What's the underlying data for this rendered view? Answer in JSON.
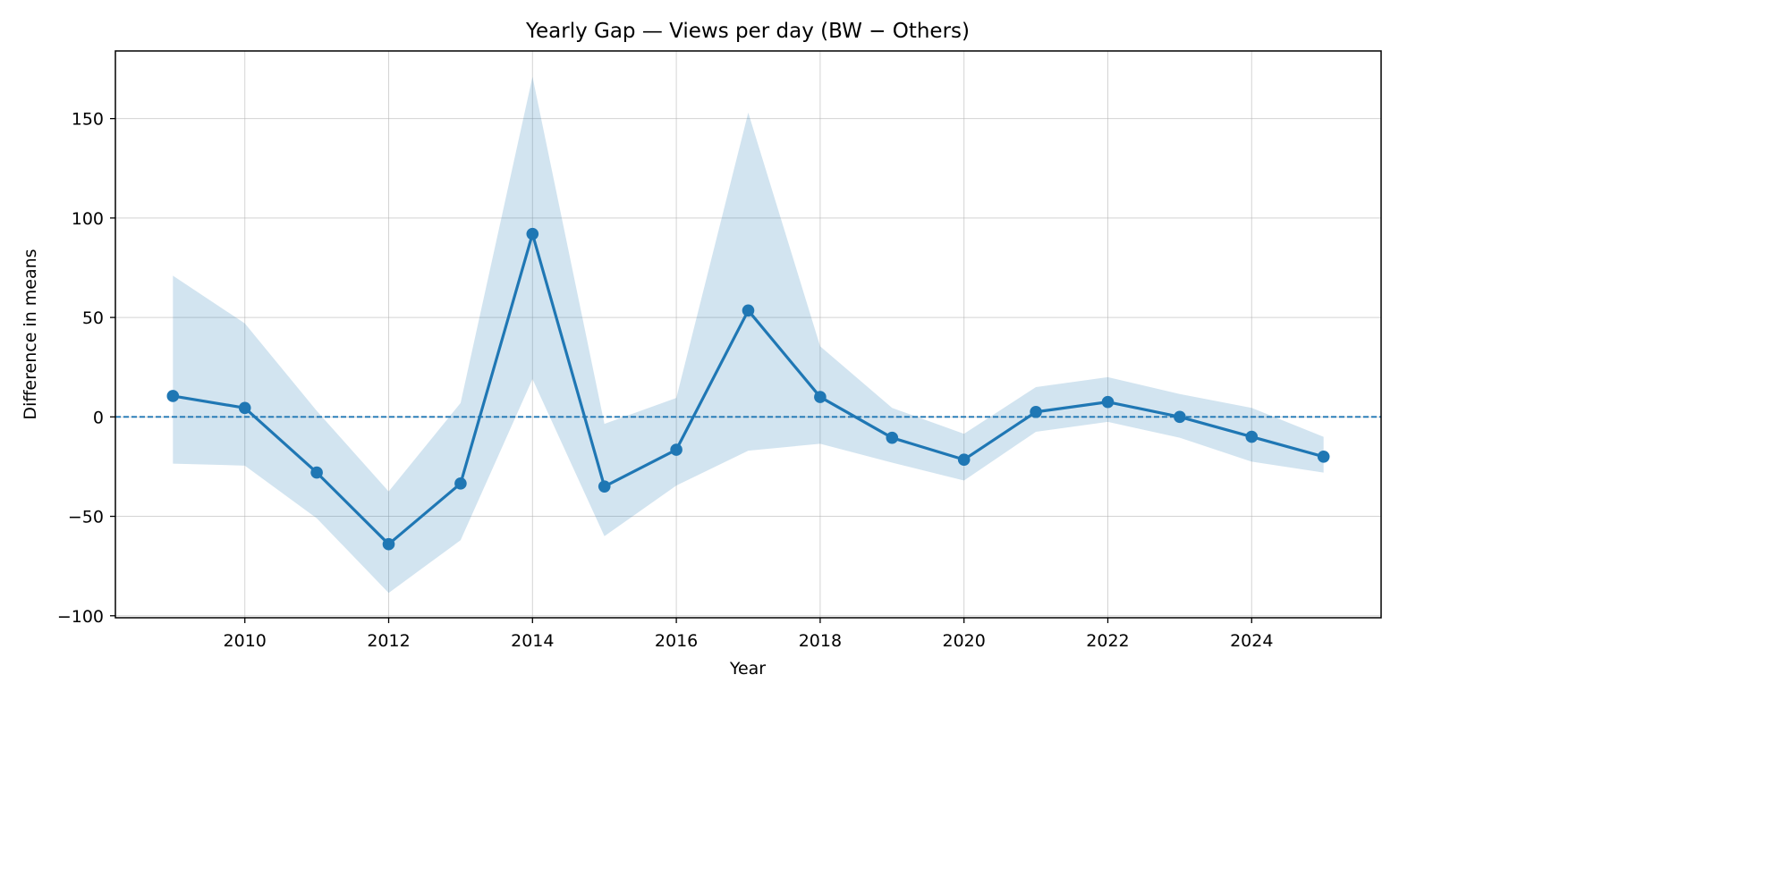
{
  "chart_data": {
    "type": "line",
    "title": "Yearly Gap — Views per day (BW − Others)",
    "xlabel": "Year",
    "ylabel": "Difference in means",
    "xlim": [
      2008.2,
      2025.8
    ],
    "ylim": [
      -101,
      184
    ],
    "xticks": [
      2010,
      2012,
      2014,
      2016,
      2018,
      2020,
      2022,
      2024
    ],
    "xtick_labels": [
      "2010",
      "2012",
      "2014",
      "2016",
      "2018",
      "2020",
      "2022",
      "2024"
    ],
    "yticks": [
      -100,
      -50,
      0,
      50,
      100,
      150
    ],
    "ytick_labels": [
      "−100",
      "−50",
      "0",
      "50",
      "100",
      "150"
    ],
    "grid": true,
    "reference_line": {
      "y": 0,
      "style": "dashed"
    },
    "series": [
      {
        "x": [
          2009,
          2010,
          2011,
          2012,
          2013,
          2014,
          2015,
          2016,
          2017,
          2018,
          2019,
          2020,
          2021,
          2022,
          2023,
          2024,
          2025
        ],
        "values": [
          10.5,
          4.5,
          -28,
          -64,
          -33.5,
          92,
          -35,
          -16.5,
          53.5,
          10,
          -10.5,
          -21.5,
          2.5,
          7.5,
          0,
          -10,
          -20
        ],
        "ci_low": [
          -23.5,
          -24.5,
          -51,
          -88.5,
          -62,
          19,
          -60,
          -34.5,
          -17,
          -13.5,
          -23,
          -32,
          -7.5,
          -2.5,
          -10.5,
          -22.5,
          -28
        ],
        "ci_high": [
          71,
          47,
          3,
          -37.5,
          7,
          171,
          -3.5,
          9.5,
          153,
          35.5,
          4.5,
          -8.5,
          15,
          20,
          11.5,
          4.5,
          -10
        ],
        "color": "#1f77b4"
      }
    ],
    "band_color": "#1f77b4",
    "band_opacity": 0.2
  }
}
